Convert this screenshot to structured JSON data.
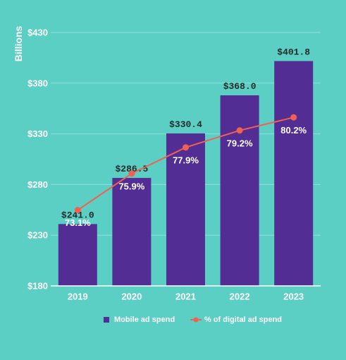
{
  "chart_data": {
    "type": "bar",
    "ylabel": "Billions",
    "categories": [
      "2019",
      "2020",
      "2021",
      "2022",
      "2023"
    ],
    "ylim": [
      180,
      430
    ],
    "yticks": [
      "$180",
      "$230",
      "$280",
      "$330",
      "$380",
      "$430"
    ],
    "series": [
      {
        "name": "Mobile ad spend",
        "type": "bar",
        "values": [
          241.0,
          286.5,
          330.4,
          368.0,
          401.8
        ],
        "labels": [
          "$241.0",
          "$286.5",
          "$330.4",
          "$368.0",
          "$401.8"
        ],
        "color": "#522d94"
      },
      {
        "name": "% of digital ad spend",
        "type": "line",
        "values": [
          73.1,
          75.9,
          77.9,
          79.2,
          80.2
        ],
        "labels": [
          "73.1%",
          "75.9%",
          "77.9%",
          "79.2%",
          "80.2%"
        ],
        "color": "#f26052"
      }
    ],
    "grid": true,
    "legend_position": "bottom"
  }
}
